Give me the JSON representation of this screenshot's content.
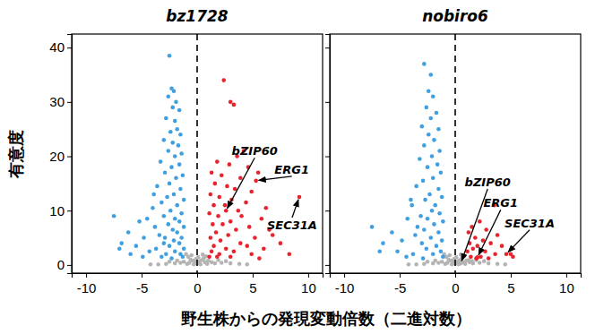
{
  "chart_data": [
    {
      "type": "scatter",
      "title": "bz1728",
      "xlabel": "野生株からの発現変動倍数（二進対数）",
      "ylabel": "有意度",
      "xlim": [
        -11.3,
        11.3
      ],
      "ylim": [
        -1.5,
        42.5
      ],
      "xticks": [
        -10,
        -5,
        0,
        5,
        10
      ],
      "yticks": [
        0,
        10,
        20,
        30,
        40
      ],
      "vline": 0,
      "series": [
        {
          "color": "#b4b4b4",
          "x": [
            -1.0,
            -0.8,
            -0.6,
            -0.4,
            -0.2,
            0,
            0.2,
            0.4,
            0.6,
            0.8,
            1.0,
            -1.2,
            -1.5,
            1.3,
            1.6,
            -2.0,
            2.2,
            -2.8,
            3.0,
            -3.5,
            3.8,
            -4.2,
            4.5,
            -0.9,
            0.9,
            -0.3,
            0.3,
            -0.5,
            0.5,
            0.1,
            -0.1,
            -0.7,
            0.7,
            -1.8,
            1.9,
            2.6,
            -2.5
          ],
          "values": [
            2,
            1.5,
            1,
            0.8,
            0.5,
            0.3,
            0.6,
            0.9,
            1.2,
            1.6,
            0.8,
            0.6,
            0.4,
            0.5,
            0.3,
            0.3,
            0.4,
            0.2,
            0.3,
            0.1,
            0.2,
            0.1,
            0.1,
            0.2,
            0.2,
            0.1,
            0.1,
            1.8,
            1.9,
            1.4,
            1.1,
            0.4,
            0.5,
            0.8,
            0.9,
            0.7,
            0.6
          ]
        },
        {
          "color": "#3f9fe0",
          "x": [
            -2.5,
            -2.3,
            -2.1,
            -2.6,
            -1.9,
            -2.2,
            -1.6,
            -2.8,
            -2.0,
            -1.8,
            -2.4,
            -1.5,
            -3.0,
            -2.2,
            -1.7,
            -2.6,
            -1.4,
            -2.0,
            -3.3,
            -1.6,
            -2.3,
            -2.9,
            -1.3,
            -1.9,
            -2.5,
            -3.6,
            -1.5,
            -2.1,
            -2.7,
            -1.2,
            -3.2,
            -1.8,
            -4.0,
            -2.4,
            -1.4,
            -3.0,
            -2.0,
            -7.5,
            -5.2,
            -4.5,
            -1.6,
            -2.6,
            -3.8,
            -1.2,
            -6.2,
            -2.2,
            -1.8,
            -3.4,
            -2.9,
            -1.4,
            -4.8,
            -6.8,
            -2.1,
            -3.0,
            -1.6,
            -5.5,
            -2.5,
            -1.2,
            -3.7,
            -4.3,
            -2.0,
            -1.5,
            -2.8,
            -7.0,
            -6.0,
            -3.2,
            -1.3,
            -4.9,
            -2.3,
            -3.9
          ],
          "values": [
            38.5,
            32.5,
            32,
            31,
            30,
            29,
            28.5,
            27,
            26.5,
            25,
            24.5,
            24,
            23,
            22.5,
            22,
            21,
            20.5,
            20,
            19,
            18.5,
            18,
            17,
            16.5,
            16,
            15,
            14.5,
            14,
            13,
            12.5,
            12,
            11.5,
            11,
            10.5,
            10,
            9.5,
            9,
            8.5,
            9,
            8,
            8.5,
            8,
            7.5,
            7,
            7,
            6,
            6.5,
            6,
            5.5,
            5,
            5,
            5,
            4,
            4.5,
            4,
            4,
            3.5,
            3.5,
            3,
            3,
            2.5,
            2.5,
            2,
            2,
            3,
            2,
            1.5,
            1.5,
            1.5,
            1.2,
            13
          ]
        },
        {
          "color": "#e8232b",
          "x": [
            2.4,
            3.0,
            3.3,
            4.2,
            3.6,
            1.8,
            2.9,
            4.6,
            5.5,
            1.3,
            2.2,
            3.9,
            5.3,
            1.6,
            2.7,
            3.4,
            4.9,
            1.2,
            2.0,
            9.2,
            3.1,
            4.4,
            1.5,
            2.5,
            6.2,
            3.7,
            2.6,
            1.1,
            1.9,
            4.0,
            5.8,
            3.0,
            1.4,
            2.3,
            4.7,
            6.5,
            6.8,
            3.5,
            1.7,
            2.8,
            5.2,
            1.2,
            2.1,
            3.9,
            7.5,
            4.5,
            1.5,
            2.6,
            6.0,
            3.3,
            1.3,
            8.3,
            2.0,
            4.9,
            1.8,
            3.0,
            1.1,
            5.6
          ],
          "values": [
            34,
            30,
            29.5,
            21,
            20,
            19,
            18.5,
            18,
            17,
            17,
            16.5,
            16,
            15.5,
            15,
            14.5,
            14,
            13.5,
            13,
            12.5,
            12.5,
            12,
            11.5,
            11,
            11,
            10.5,
            10,
            10,
            9.5,
            9,
            9,
            8.5,
            8,
            7.5,
            7.5,
            7,
            6.5,
            5.5,
            6.5,
            6,
            5.5,
            5,
            5,
            4.5,
            4,
            4,
            3.5,
            3.5,
            3,
            3,
            2.5,
            2.5,
            2,
            2,
            2,
            1.5,
            1.5,
            1.5,
            1.2
          ]
        }
      ],
      "annotations": [
        {
          "text": "bZIP60",
          "x": 2.6,
          "y": 10
        },
        {
          "text": "ERG1",
          "x": 5.3,
          "y": 15.5
        },
        {
          "text": "SEC31A",
          "x": 9.2,
          "y": 12.5
        }
      ]
    },
    {
      "type": "scatter",
      "title": "nobiro6",
      "xlim": [
        -11.3,
        11.3
      ],
      "ylim": [
        -1.5,
        42.5
      ],
      "xticks": [
        -10,
        -5,
        0,
        5,
        10
      ],
      "yticks": [
        0,
        10,
        20,
        30,
        40
      ],
      "tick_labels": "x",
      "vline": 0,
      "series": [
        {
          "color": "#b4b4b4",
          "x": [
            -1.0,
            -0.8,
            -0.6,
            -0.4,
            -0.2,
            0,
            0.2,
            0.4,
            0.6,
            0.8,
            1.0,
            -1.2,
            -1.5,
            1.3,
            1.6,
            -2.0,
            2.2,
            -2.8,
            3.0,
            -3.5,
            3.8,
            -4.2,
            4.5,
            -0.9,
            0.9,
            -0.3,
            0.3,
            -0.5,
            0.5,
            0.1,
            -0.1,
            -0.7,
            0.7,
            -1.8,
            1.9,
            2.6,
            -2.5,
            0.5,
            1.2,
            1.5
          ],
          "values": [
            2,
            1.5,
            1,
            0.8,
            0.5,
            0.3,
            0.6,
            0.9,
            1.2,
            1.6,
            0.8,
            0.6,
            0.4,
            0.5,
            0.3,
            0.3,
            0.4,
            0.2,
            0.3,
            0.1,
            0.2,
            0.1,
            0.1,
            0.2,
            0.2,
            0.1,
            0.1,
            1.8,
            1.9,
            1.4,
            1.1,
            0.4,
            0.5,
            0.8,
            0.9,
            0.7,
            0.6,
            0.3,
            0.9,
            0.7
          ]
        },
        {
          "color": "#3f9fe0",
          "x": [
            -2.8,
            -2.4,
            -2.0,
            -2.6,
            -1.7,
            -2.2,
            -3.0,
            -1.5,
            -2.4,
            -1.9,
            -2.8,
            -1.4,
            -2.1,
            -3.2,
            -1.6,
            -2.5,
            -1.3,
            -2.0,
            -2.9,
            -3.5,
            -1.5,
            -2.3,
            -1.2,
            -2.7,
            -1.8,
            -3.9,
            -2.1,
            -1.4,
            -3.1,
            -2.5,
            -1.1,
            -4.3,
            -1.9,
            -7.5,
            -5.7,
            -2.8,
            -1.5,
            -3.6,
            -2.2,
            -1.2,
            -4.8,
            -6.5,
            -3.0,
            -1.7,
            -2.6,
            -5.2,
            -1.3,
            -3.8,
            -2.0,
            -6.8,
            -1.1,
            -4.4,
            -2.9,
            -3.4,
            -4.0,
            -2.2
          ],
          "values": [
            37,
            32,
            31,
            29,
            28,
            27,
            25.5,
            25,
            24,
            23,
            22,
            21,
            20,
            19.5,
            18.5,
            18,
            17,
            16,
            15.5,
            14.5,
            14,
            13,
            12.5,
            12,
            11,
            11,
            10,
            9.5,
            9,
            8.5,
            8,
            8.5,
            7.5,
            7,
            6,
            6.5,
            6,
            5.5,
            5,
            4.5,
            4.5,
            4,
            4,
            3.5,
            3,
            2.5,
            2.5,
            2,
            2,
            2.5,
            1.5,
            1.5,
            1.2,
            7,
            12,
            35
          ]
        },
        {
          "color": "#e8232b",
          "x": [
            3.5,
            2.2,
            1.5,
            2.8,
            1.2,
            3.8,
            1.8,
            2.5,
            1.3,
            3.2,
            2.0,
            4.2,
            1.6,
            2.7,
            1.1,
            5.0,
            5.2,
            4.6,
            3.6,
            1.4,
            2.3,
            3.0,
            1.9,
            2.0
          ],
          "values": [
            11,
            8,
            7,
            6.5,
            6,
            5.5,
            5,
            4.5,
            4,
            4,
            3.5,
            3.5,
            3,
            2.5,
            2.5,
            2,
            1.5,
            2,
            2,
            1.5,
            1.5,
            1.2,
            1.2,
            1.4
          ]
        }
      ],
      "annotations": [
        {
          "text": "bZIP60",
          "x": 0.5,
          "y": 0.3
        },
        {
          "text": "ERG1",
          "x": 2.0,
          "y": 1.4
        },
        {
          "text": "SEC31A",
          "x": 4.6,
          "y": 2
        }
      ]
    }
  ]
}
